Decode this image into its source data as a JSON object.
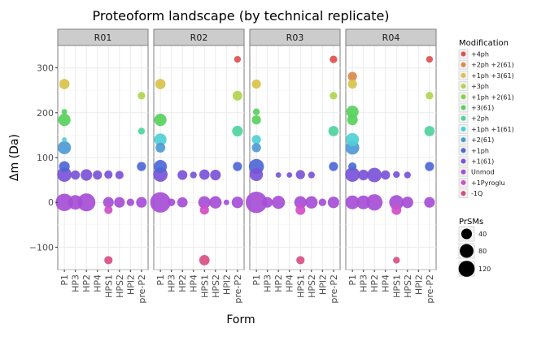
{
  "chart_data": {
    "type": "scatter",
    "title": "Proteoform landscape (by technical replicate)",
    "xlabel": "Form",
    "ylabel": "Δm (Da)",
    "facets": [
      "R01",
      "R02",
      "R03",
      "R04"
    ],
    "categories": [
      "P1",
      "HP3",
      "HP2",
      "HP4",
      "HPS1",
      "HPS2",
      "HPI2",
      "pre-P2"
    ],
    "ylim": [
      -150,
      350
    ],
    "yticks": [
      -100,
      0,
      100,
      200,
      300
    ],
    "ytick_labels": [
      "−100",
      "0",
      "100",
      "200",
      "300"
    ],
    "grid": true,
    "legend_position": "right",
    "color_legend": {
      "title": "Modification",
      "entries": [
        {
          "label": "+4ph",
          "color": "#e0504f"
        },
        {
          "label": "+2ph +2(61)",
          "color": "#d98a4a"
        },
        {
          "label": "+1ph +3(61)",
          "color": "#d9c24a"
        },
        {
          "label": "+3ph",
          "color": "#b3d24e"
        },
        {
          "label": "+1ph +2(61)",
          "color": "#86d24e"
        },
        {
          "label": "+3(61)",
          "color": "#58d05c"
        },
        {
          "label": "+2ph",
          "color": "#4ed2a0"
        },
        {
          "label": "+1ph +1(61)",
          "color": "#4ed0d6"
        },
        {
          "label": "+2(61)",
          "color": "#4e9ad6"
        },
        {
          "label": "+1ph",
          "color": "#4e68d6"
        },
        {
          "label": "+1(61)",
          "color": "#7a52d8"
        },
        {
          "label": "Unmod",
          "color": "#a64ed6"
        },
        {
          "label": "+1Pyroglu",
          "color": "#d04ec8"
        },
        {
          "label": "-1Q",
          "color": "#d94e82"
        }
      ]
    },
    "size_legend": {
      "title": "PrSMs",
      "entries": [
        {
          "label": "40",
          "value": 40
        },
        {
          "label": "80",
          "value": 80
        },
        {
          "label": "120",
          "value": 120
        }
      ]
    },
    "points": [
      {
        "facet": "R01",
        "form": "P1",
        "mod": "+1ph +3(61)",
        "dm": 264,
        "prsms": 28
      },
      {
        "facet": "R01",
        "form": "P1",
        "mod": "+3(61)",
        "dm": 202,
        "prsms": 8
      },
      {
        "facet": "R01",
        "form": "P1",
        "mod": "+3(61)",
        "dm": 184,
        "prsms": 40
      },
      {
        "facet": "R01",
        "form": "P1",
        "mod": "+1ph +1(61)",
        "dm": 140,
        "prsms": 6
      },
      {
        "facet": "R01",
        "form": "P1",
        "mod": "+2(61)",
        "dm": 122,
        "prsms": 45
      },
      {
        "facet": "R01",
        "form": "P1",
        "mod": "+1ph",
        "dm": 80,
        "prsms": 30
      },
      {
        "facet": "R01",
        "form": "P1",
        "mod": "+1(61)",
        "dm": 62,
        "prsms": 55
      },
      {
        "facet": "R01",
        "form": "P1",
        "mod": "Unmod",
        "dm": 0,
        "prsms": 80
      },
      {
        "facet": "R01",
        "form": "HP3",
        "mod": "+1(61)",
        "dm": 61,
        "prsms": 22
      },
      {
        "facet": "R01",
        "form": "HP3",
        "mod": "Unmod",
        "dm": 0,
        "prsms": 55
      },
      {
        "facet": "R01",
        "form": "HP2",
        "mod": "+1(61)",
        "dm": 61,
        "prsms": 35
      },
      {
        "facet": "R01",
        "form": "HP2",
        "mod": "Unmod",
        "dm": 0,
        "prsms": 85
      },
      {
        "facet": "R01",
        "form": "HP4",
        "mod": "+1(61)",
        "dm": 61,
        "prsms": 22
      },
      {
        "facet": "R01",
        "form": "HPS1",
        "mod": "+1(61)",
        "dm": 62,
        "prsms": 18
      },
      {
        "facet": "R01",
        "form": "HPS1",
        "mod": "Unmod",
        "dm": 0,
        "prsms": 30
      },
      {
        "facet": "R01",
        "form": "HPS1",
        "mod": "+1Pyroglu",
        "dm": -17,
        "prsms": 18
      },
      {
        "facet": "R01",
        "form": "HPS1",
        "mod": "-1Q",
        "dm": -129,
        "prsms": 18
      },
      {
        "facet": "R01",
        "form": "HPS2",
        "mod": "+1(61)",
        "dm": 61,
        "prsms": 18
      },
      {
        "facet": "R01",
        "form": "HPS2",
        "mod": "Unmod",
        "dm": 0,
        "prsms": 30
      },
      {
        "facet": "R01",
        "form": "HPI2",
        "mod": "Unmod",
        "dm": 0,
        "prsms": 15
      },
      {
        "facet": "R01",
        "form": "pre-P2",
        "mod": "+3ph",
        "dm": 238,
        "prsms": 15
      },
      {
        "facet": "R01",
        "form": "pre-P2",
        "mod": "+2ph",
        "dm": 159,
        "prsms": 12
      },
      {
        "facet": "R01",
        "form": "pre-P2",
        "mod": "+1ph",
        "dm": 80,
        "prsms": 22
      },
      {
        "facet": "R01",
        "form": "pre-P2",
        "mod": "Unmod",
        "dm": 0,
        "prsms": 30
      },
      {
        "facet": "R02",
        "form": "P1",
        "mod": "+1ph +3(61)",
        "dm": 264,
        "prsms": 28
      },
      {
        "facet": "R02",
        "form": "P1",
        "mod": "+3(61)",
        "dm": 184,
        "prsms": 40
      },
      {
        "facet": "R02",
        "form": "P1",
        "mod": "+1ph +1(61)",
        "dm": 140,
        "prsms": 40
      },
      {
        "facet": "R02",
        "form": "P1",
        "mod": "+2(61)",
        "dm": 122,
        "prsms": 25
      },
      {
        "facet": "R02",
        "form": "P1",
        "mod": "+1ph",
        "dm": 80,
        "prsms": 45
      },
      {
        "facet": "R02",
        "form": "P1",
        "mod": "+1(61)",
        "dm": 62,
        "prsms": 55
      },
      {
        "facet": "R02",
        "form": "P1",
        "mod": "Unmod",
        "dm": 0,
        "prsms": 110
      },
      {
        "facet": "R02",
        "form": "HP3",
        "mod": "Unmod",
        "dm": 0,
        "prsms": 15
      },
      {
        "facet": "R02",
        "form": "HP2",
        "mod": "+1(61)",
        "dm": 61,
        "prsms": 25
      },
      {
        "facet": "R02",
        "form": "HP2",
        "mod": "Unmod",
        "dm": 0,
        "prsms": 28
      },
      {
        "facet": "R02",
        "form": "HP4",
        "mod": "+1(61)",
        "dm": 61,
        "prsms": 12
      },
      {
        "facet": "R02",
        "form": "HPS1",
        "mod": "+1(61)",
        "dm": 62,
        "prsms": 28
      },
      {
        "facet": "R02",
        "form": "HPS1",
        "mod": "Unmod",
        "dm": 0,
        "prsms": 40
      },
      {
        "facet": "R02",
        "form": "HPS1",
        "mod": "+1Pyroglu",
        "dm": -17,
        "prsms": 22
      },
      {
        "facet": "R02",
        "form": "HPS1",
        "mod": "-1Q",
        "dm": -129,
        "prsms": 28
      },
      {
        "facet": "R02",
        "form": "HPS2",
        "mod": "+1(61)",
        "dm": 61,
        "prsms": 30
      },
      {
        "facet": "R02",
        "form": "HPS2",
        "mod": "Unmod",
        "dm": 0,
        "prsms": 40
      },
      {
        "facet": "R02",
        "form": "HPI2",
        "mod": "Unmod",
        "dm": 0,
        "prsms": 8
      },
      {
        "facet": "R02",
        "form": "pre-P2",
        "mod": "+4ph",
        "dm": 319,
        "prsms": 12
      },
      {
        "facet": "R02",
        "form": "pre-P2",
        "mod": "+3ph",
        "dm": 238,
        "prsms": 25
      },
      {
        "facet": "R02",
        "form": "pre-P2",
        "mod": "+2ph",
        "dm": 159,
        "prsms": 30
      },
      {
        "facet": "R02",
        "form": "pre-P2",
        "mod": "+1ph",
        "dm": 80,
        "prsms": 22
      },
      {
        "facet": "R02",
        "form": "pre-P2",
        "mod": "Unmod",
        "dm": 0,
        "prsms": 35
      },
      {
        "facet": "R03",
        "form": "P1",
        "mod": "+1ph +3(61)",
        "dm": 264,
        "prsms": 22
      },
      {
        "facet": "R03",
        "form": "P1",
        "mod": "+3(61)",
        "dm": 202,
        "prsms": 12
      },
      {
        "facet": "R03",
        "form": "P1",
        "mod": "+3(61)",
        "dm": 184,
        "prsms": 22
      },
      {
        "facet": "R03",
        "form": "P1",
        "mod": "+1ph +1(61)",
        "dm": 140,
        "prsms": 22
      },
      {
        "facet": "R03",
        "form": "P1",
        "mod": "+2(61)",
        "dm": 122,
        "prsms": 22
      },
      {
        "facet": "R03",
        "form": "P1",
        "mod": "+1ph",
        "dm": 80,
        "prsms": 60
      },
      {
        "facet": "R03",
        "form": "P1",
        "mod": "+1(61)",
        "dm": 62,
        "prsms": 45
      },
      {
        "facet": "R03",
        "form": "P1",
        "mod": "Unmod",
        "dm": 0,
        "prsms": 120
      },
      {
        "facet": "R03",
        "form": "HP3",
        "mod": "Unmod",
        "dm": 0,
        "prsms": 30
      },
      {
        "facet": "R03",
        "form": "HP2",
        "mod": "+1(61)",
        "dm": 61,
        "prsms": 8
      },
      {
        "facet": "R03",
        "form": "HP2",
        "mod": "Unmod",
        "dm": 0,
        "prsms": 45
      },
      {
        "facet": "R03",
        "form": "HP4",
        "mod": "+1(61)",
        "dm": 61,
        "prsms": 8
      },
      {
        "facet": "R03",
        "form": "HPS1",
        "mod": "+1(61)",
        "dm": 62,
        "prsms": 22
      },
      {
        "facet": "R03",
        "form": "HPS1",
        "mod": "Unmod",
        "dm": 0,
        "prsms": 40
      },
      {
        "facet": "R03",
        "form": "HPS1",
        "mod": "+1Pyroglu",
        "dm": -17,
        "prsms": 25
      },
      {
        "facet": "R03",
        "form": "HPS1",
        "mod": "-1Q",
        "dm": -129,
        "prsms": 18
      },
      {
        "facet": "R03",
        "form": "HPS2",
        "mod": "+1(61)",
        "dm": 61,
        "prsms": 12
      },
      {
        "facet": "R03",
        "form": "HPS2",
        "mod": "Unmod",
        "dm": 0,
        "prsms": 40
      },
      {
        "facet": "R03",
        "form": "HPI2",
        "mod": "Unmod",
        "dm": 0,
        "prsms": 15
      },
      {
        "facet": "R03",
        "form": "pre-P2",
        "mod": "+4ph",
        "dm": 319,
        "prsms": 15
      },
      {
        "facet": "R03",
        "form": "pre-P2",
        "mod": "+3ph",
        "dm": 238,
        "prsms": 15
      },
      {
        "facet": "R03",
        "form": "pre-P2",
        "mod": "+2ph",
        "dm": 159,
        "prsms": 28
      },
      {
        "facet": "R03",
        "form": "pre-P2",
        "mod": "+1ph",
        "dm": 80,
        "prsms": 22
      },
      {
        "facet": "R03",
        "form": "pre-P2",
        "mod": "Unmod",
        "dm": 0,
        "prsms": 35
      },
      {
        "facet": "R04",
        "form": "P1",
        "mod": "+2ph +2(61)",
        "dm": 281,
        "prsms": 22
      },
      {
        "facet": "R04",
        "form": "P1",
        "mod": "+1ph +3(61)",
        "dm": 264,
        "prsms": 22
      },
      {
        "facet": "R04",
        "form": "P1",
        "mod": "+3(61)",
        "dm": 202,
        "prsms": 40
      },
      {
        "facet": "R04",
        "form": "P1",
        "mod": "+3(61)",
        "dm": 184,
        "prsms": 30
      },
      {
        "facet": "R04",
        "form": "P1",
        "mod": "+1ph +1(61)",
        "dm": 140,
        "prsms": 45
      },
      {
        "facet": "R04",
        "form": "P1",
        "mod": "+2(61)",
        "dm": 122,
        "prsms": 50
      },
      {
        "facet": "R04",
        "form": "P1",
        "mod": "+1ph",
        "dm": 80,
        "prsms": 18
      },
      {
        "facet": "R04",
        "form": "P1",
        "mod": "+1(61)",
        "dm": 62,
        "prsms": 55
      },
      {
        "facet": "R04",
        "form": "P1",
        "mod": "Unmod",
        "dm": 0,
        "prsms": 50
      },
      {
        "facet": "R04",
        "form": "HP3",
        "mod": "+1(61)",
        "dm": 61,
        "prsms": 30
      },
      {
        "facet": "R04",
        "form": "HP3",
        "mod": "Unmod",
        "dm": 0,
        "prsms": 50
      },
      {
        "facet": "R04",
        "form": "HP2",
        "mod": "+1(61)",
        "dm": 61,
        "prsms": 55
      },
      {
        "facet": "R04",
        "form": "HP2",
        "mod": "Unmod",
        "dm": 0,
        "prsms": 70
      },
      {
        "facet": "R04",
        "form": "HP4",
        "mod": "+1(61)",
        "dm": 61,
        "prsms": 22
      },
      {
        "facet": "R04",
        "form": "HPS1",
        "mod": "+1(61)",
        "dm": 62,
        "prsms": 12
      },
      {
        "facet": "R04",
        "form": "HPS1",
        "mod": "Unmod",
        "dm": 0,
        "prsms": 55
      },
      {
        "facet": "R04",
        "form": "HPS1",
        "mod": "+1Pyroglu",
        "dm": -17,
        "prsms": 25
      },
      {
        "facet": "R04",
        "form": "HPS1",
        "mod": "-1Q",
        "dm": -129,
        "prsms": 12
      },
      {
        "facet": "R04",
        "form": "HPS2",
        "mod": "+1(61)",
        "dm": 61,
        "prsms": 12
      },
      {
        "facet": "R04",
        "form": "HPS2",
        "mod": "Unmod",
        "dm": 0,
        "prsms": 35
      },
      {
        "facet": "R04",
        "form": "pre-P2",
        "mod": "+4ph",
        "dm": 319,
        "prsms": 12
      },
      {
        "facet": "R04",
        "form": "pre-P2",
        "mod": "+3ph",
        "dm": 238,
        "prsms": 15
      },
      {
        "facet": "R04",
        "form": "pre-P2",
        "mod": "+2ph",
        "dm": 159,
        "prsms": 28
      },
      {
        "facet": "R04",
        "form": "pre-P2",
        "mod": "+1ph",
        "dm": 80,
        "prsms": 22
      },
      {
        "facet": "R04",
        "form": "pre-P2",
        "mod": "Unmod",
        "dm": 0,
        "prsms": 30
      }
    ]
  }
}
